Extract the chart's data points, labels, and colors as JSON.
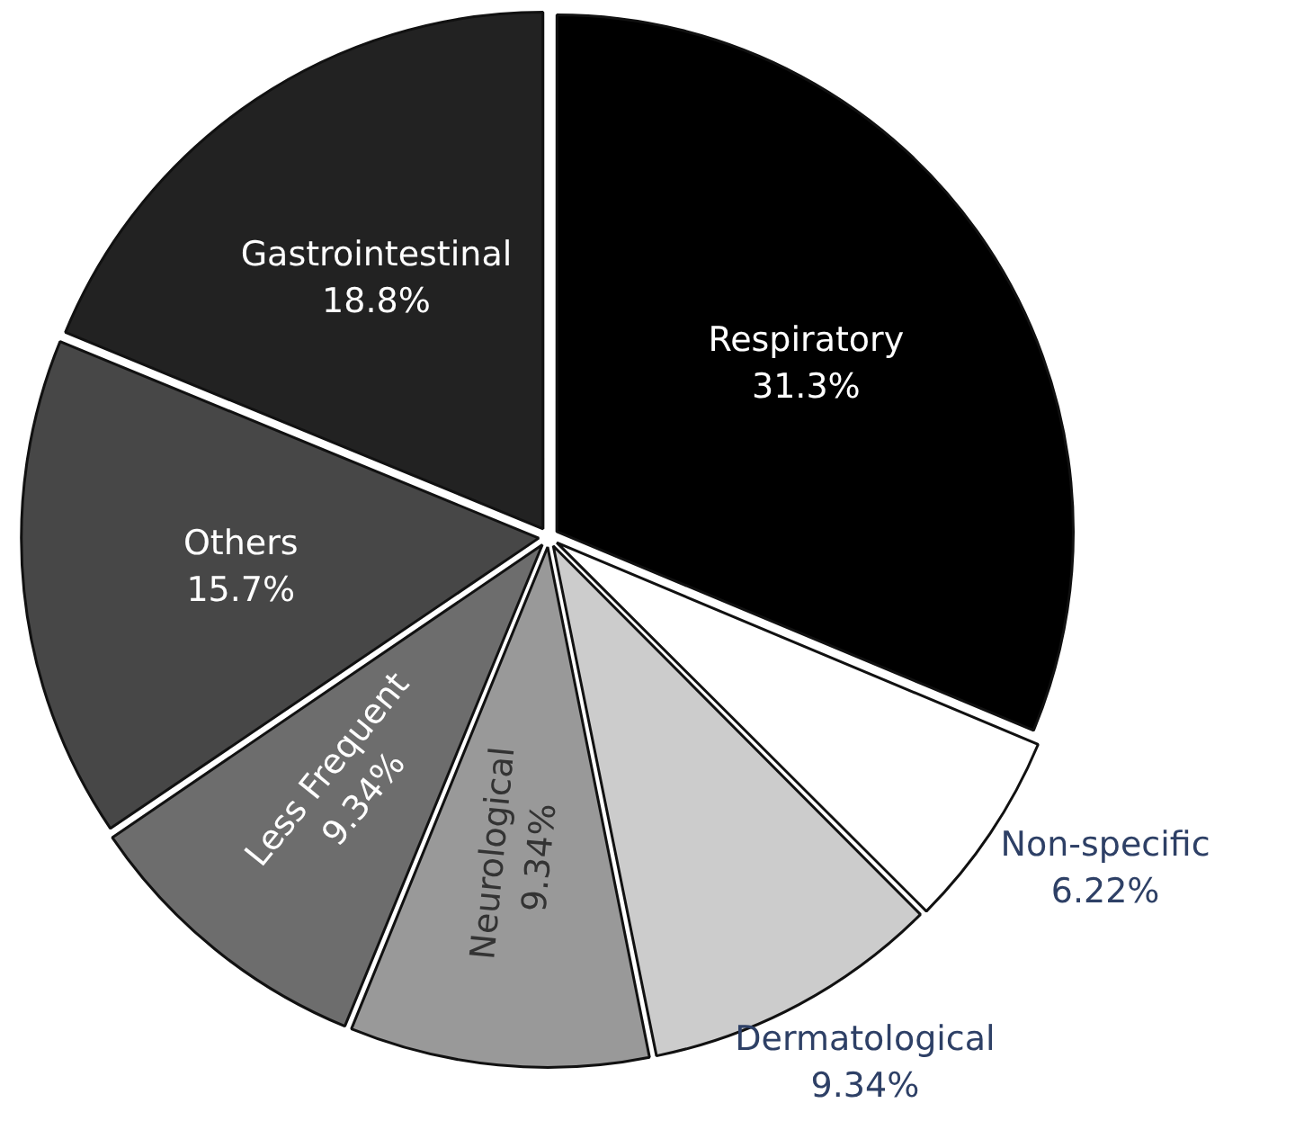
{
  "chart_data": {
    "type": "pie",
    "categories": [
      "Respiratory",
      "Non-specific",
      "Dermatological",
      "Neurological",
      "Less Frequent",
      "Others",
      "Gastrointestinal"
    ],
    "values": [
      31.3,
      6.22,
      9.34,
      9.34,
      9.34,
      15.7,
      18.8
    ],
    "colors": [
      "#000000",
      "#ffffff",
      "#cccccc",
      "#999999",
      "#6d6d6d",
      "#474747",
      "#222222"
    ],
    "value_labels": [
      "31.3%",
      "6.22%",
      "9.34%",
      "9.34%",
      "9.34%",
      "15.7%",
      "18.8%"
    ],
    "legend": false
  }
}
